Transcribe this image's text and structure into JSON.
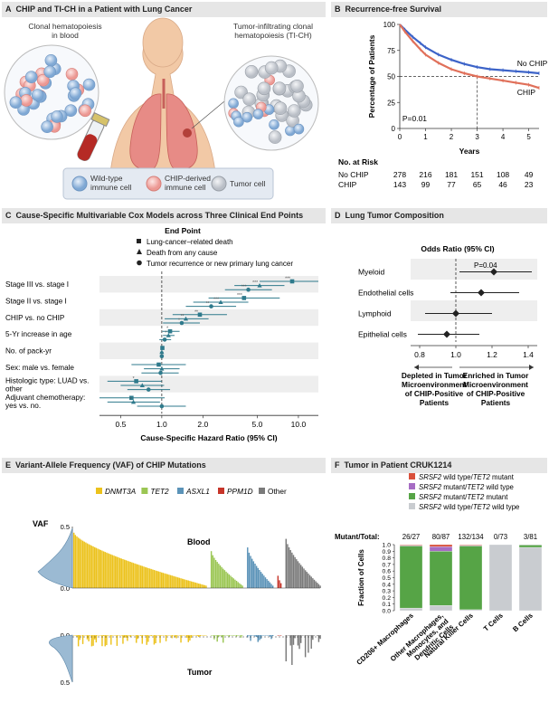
{
  "colors": {
    "header_bg": "#e6e6e6",
    "blood_blue": "#8ab0d8",
    "chip_pink": "#f0a8a4",
    "tumor_gray": "#c8ccd2",
    "no_chip_line": "#3c63c8",
    "chip_line": "#e0705a",
    "forest_marker": "#2f7a8c",
    "band": "#eeeeee",
    "dnmt3a": "#ecc21c",
    "tet2": "#9bc653",
    "asxl1": "#5b93b8",
    "ppm1d": "#c7352a",
    "other": "#7a7a7a",
    "state_tet2_mut": "#d9503b",
    "state_srsf2_mut": "#a66cc4",
    "state_both": "#56a446",
    "state_wt": "#c9ccd0",
    "lung": "#e78b86",
    "skin": "#f2c9a6"
  },
  "panel_a": {
    "letter": "A",
    "title": "CHIP and TI-CH in a Patient with Lung Cancer",
    "label_left": [
      "Clonal hematopoiesis",
      "in blood"
    ],
    "label_right": [
      "Tumor-infiltrating clonal",
      "hematopoiesis (TI-CH)"
    ],
    "legend": [
      {
        "icon": "wild-type-cell",
        "lines": [
          "Wild-type",
          "immune cell"
        ]
      },
      {
        "icon": "chip-cell",
        "lines": [
          "CHIP-derived",
          "immune cell"
        ]
      },
      {
        "icon": "tumor-cell",
        "lines": [
          "Tumor cell"
        ]
      }
    ]
  },
  "panel_b": {
    "letter": "B",
    "title": "Recurrence-free Survival",
    "pvalue": "P=0.01",
    "risk_title": "No. at Risk",
    "risk_rows": [
      {
        "label": "No CHIP",
        "values": [
          "278",
          "216",
          "181",
          "151",
          "108",
          "49"
        ]
      },
      {
        "label": "CHIP",
        "values": [
          "143",
          "99",
          "77",
          "65",
          "46",
          "23"
        ]
      }
    ],
    "chart_data": {
      "type": "line",
      "title": "Recurrence-free Survival",
      "xlabel": "Years",
      "ylabel": "Percentage of Patients",
      "xlim": [
        0,
        5.4
      ],
      "ylim": [
        0,
        100
      ],
      "xticks": [
        0,
        1,
        2,
        3,
        4,
        5
      ],
      "yticks": [
        0,
        25,
        50,
        75,
        100
      ],
      "reference": {
        "y": 50,
        "x": 3
      },
      "series": [
        {
          "name": "No CHIP",
          "x": [
            0,
            0.2,
            0.5,
            0.8,
            1.0,
            1.5,
            2.0,
            2.5,
            3.0,
            3.5,
            4.0,
            4.5,
            5.0,
            5.4
          ],
          "y": [
            100,
            95,
            88,
            82,
            78,
            71,
            66,
            62,
            59,
            57,
            56,
            55,
            54,
            53
          ]
        },
        {
          "name": "CHIP",
          "x": [
            0,
            0.2,
            0.5,
            0.8,
            1.0,
            1.5,
            2.0,
            2.5,
            3.0,
            3.5,
            4.0,
            4.5,
            5.0,
            5.4
          ],
          "y": [
            100,
            93,
            84,
            76,
            71,
            63,
            57,
            53,
            50,
            48,
            46,
            44,
            42,
            39
          ]
        }
      ]
    }
  },
  "panel_c": {
    "letter": "C",
    "title": "Cause-Specific Multivariable Cox Models across Three Clinical End Points",
    "legend_title": "End Point",
    "legend": [
      {
        "shape": "square",
        "label": "Lung-cancer–related death"
      },
      {
        "shape": "triangle",
        "label": "Death from any cause"
      },
      {
        "shape": "circle",
        "label": "Tumor recurrence or new primary lung cancer"
      }
    ],
    "rows": [
      {
        "label": [
          "Stage III vs. stage I"
        ]
      },
      {
        "label": [
          "Stage II vs. stage I"
        ]
      },
      {
        "label": [
          "CHIP vs. no CHIP"
        ]
      },
      {
        "label": [
          "5-Yr increase in age"
        ]
      },
      {
        "label": [
          "No. of pack-yr"
        ]
      },
      {
        "label": [
          "Sex: male vs. female"
        ]
      },
      {
        "label": [
          "Histologic type: LUAD vs.",
          "other"
        ]
      },
      {
        "label": [
          "Adjuvant chemotherapy:",
          "yes vs. no."
        ]
      }
    ],
    "chart_data": {
      "type": "forest",
      "xlabel": "Cause-Specific Hazard Ratio (95% CI)",
      "xscale": "log",
      "xlim": [
        0.35,
        14
      ],
      "xticks": [
        0.5,
        1.0,
        2.0,
        5.0,
        10.0
      ],
      "xtick_labels": [
        "0.5",
        "1.0",
        "2.0",
        "5.0",
        "10.0"
      ],
      "reference": 1.0,
      "series_names": [
        "Lung-cancer–related death",
        "Death from any cause",
        "Tumor recurrence or new primary lung cancer"
      ],
      "points": [
        {
          "row": 0,
          "est": [
            9.0,
            5.2,
            4.3
          ],
          "lo": [
            5.2,
            3.4,
            2.9
          ],
          "hi": [
            14.0,
            7.9,
            6.4
          ],
          "sig": [
            "***",
            "***",
            "***"
          ]
        },
        {
          "row": 1,
          "est": [
            4.0,
            2.7,
            2.3
          ],
          "lo": [
            2.2,
            1.7,
            1.5
          ],
          "hi": [
            7.3,
            4.3,
            3.5
          ],
          "sig": [
            "***",
            "***",
            "**"
          ]
        },
        {
          "row": 2,
          "est": [
            1.9,
            1.5,
            1.4
          ],
          "lo": [
            1.2,
            1.05,
            1.02
          ],
          "hi": [
            3.0,
            2.2,
            1.9
          ],
          "sig": [
            "**",
            "**",
            "*"
          ]
        },
        {
          "row": 3,
          "est": [
            1.15,
            1.12,
            1.05
          ],
          "lo": [
            1.01,
            1.02,
            0.96
          ],
          "hi": [
            1.35,
            1.24,
            1.17
          ],
          "sig": [
            "*",
            "*",
            ""
          ]
        },
        {
          "row": 4,
          "est": [
            1.01,
            1.0,
            1.0
          ],
          "lo": [
            0.98,
            0.97,
            0.97
          ],
          "hi": [
            1.04,
            1.03,
            1.03
          ],
          "sig": [
            "",
            "",
            ""
          ]
        },
        {
          "row": 5,
          "est": [
            0.95,
            1.0,
            0.98
          ],
          "lo": [
            0.6,
            0.74,
            0.71
          ],
          "hi": [
            1.5,
            1.35,
            1.33
          ],
          "sig": [
            "",
            "",
            ""
          ]
        },
        {
          "row": 6,
          "est": [
            0.65,
            0.72,
            0.8
          ],
          "lo": [
            0.4,
            0.5,
            0.56
          ],
          "hi": [
            1.0,
            1.04,
            1.15
          ],
          "sig": [
            "*",
            "",
            ""
          ]
        },
        {
          "row": 7,
          "est": [
            0.6,
            0.62,
            1.0
          ],
          "lo": [
            0.35,
            0.4,
            0.66
          ],
          "hi": [
            1.05,
            0.97,
            1.5
          ],
          "sig": [
            "",
            "*",
            ""
          ]
        }
      ]
    }
  },
  "panel_d": {
    "letter": "D",
    "title": "Lung Tumor Composition",
    "subtitle": "Odds Ratio (95% CI)",
    "pvalue": "P=0.04",
    "left_caption": [
      "Depleted in Tumor",
      "Microenvironment",
      "of CHIP-Positive",
      "Patients"
    ],
    "right_caption": [
      "Enriched in Tumor",
      "Microenvironment",
      "of CHIP-Positive",
      "Patients"
    ],
    "chart_data": {
      "type": "forest",
      "xlabel": "Odds Ratio (95% CI)",
      "xlim": [
        0.75,
        1.45
      ],
      "xticks": [
        0.8,
        1.0,
        1.2,
        1.4
      ],
      "xtick_labels": [
        "0.8",
        "1.0",
        "1.2",
        "1.4"
      ],
      "reference": 1.0,
      "categories": [
        "Myeloid",
        "Endothelial cells",
        "Lymphoid",
        "Epithelial cells"
      ],
      "est": [
        1.21,
        1.14,
        1.0,
        0.95
      ],
      "lo": [
        1.02,
        0.97,
        0.83,
        0.79
      ],
      "hi": [
        1.42,
        1.35,
        1.2,
        1.13
      ]
    }
  },
  "panel_e": {
    "letter": "E",
    "title": "Variant-Allele Frequency (VAF) of CHIP Mutations",
    "legend": [
      {
        "key": "dnmt3a",
        "label": "DNMT3A",
        "italic": true
      },
      {
        "key": "tet2",
        "label": "TET2",
        "italic": true
      },
      {
        "key": "asxl1",
        "label": "ASXL1",
        "italic": true
      },
      {
        "key": "ppm1d",
        "label": "PPM1D",
        "italic": true
      },
      {
        "key": "other",
        "label": "Other",
        "italic": false
      }
    ],
    "vaf_label": "VAF",
    "blood_label": "Blood",
    "tumor_label": "Tumor",
    "chart_data": {
      "type": "bar",
      "ylabel": "VAF",
      "ylim_blood": [
        0,
        0.5
      ],
      "ylim_tumor": [
        0,
        0.5
      ],
      "yticks_blood": [
        "0.5",
        "0.0"
      ],
      "yticks_tumor": [
        "0.0",
        "0.5"
      ],
      "groups": [
        {
          "gene": "DNMT3A",
          "count": 90,
          "blood_max": 0.45,
          "blood_min": 0.02,
          "tumor_max": 0.16
        },
        {
          "gene": "TET2",
          "count": 22,
          "blood_max": 0.3,
          "blood_min": 0.02,
          "tumor_max": 0.12
        },
        {
          "gene": "ASXL1",
          "count": 18,
          "blood_max": 0.33,
          "blood_min": 0.02,
          "tumor_max": 0.1
        },
        {
          "gene": "PPM1D",
          "count": 3,
          "blood_max": 0.1,
          "blood_min": 0.04,
          "tumor_max": 0.05
        },
        {
          "gene": "Other",
          "count": 24,
          "blood_max": 0.4,
          "blood_min": 0.02,
          "tumor_max": 0.38
        }
      ]
    }
  },
  "panel_f": {
    "letter": "F",
    "title": "Tumor in Patient CRUK1214",
    "legend": [
      {
        "key": "state_tet2_mut",
        "pre": "SRSF2",
        "mid": " wild type/",
        "gene2": "TET2",
        "post": " mutant"
      },
      {
        "key": "state_srsf2_mut",
        "pre": "SRSF2",
        "mid": " mutant/",
        "gene2": "TET2",
        "post": " wild type"
      },
      {
        "key": "state_both",
        "pre": "SRSF2",
        "mid": " mutant/",
        "gene2": "TET2",
        "post": " mutant"
      },
      {
        "key": "state_wt",
        "pre": "SRSF2",
        "mid": " wild type/",
        "gene2": "TET2",
        "post": " wild type"
      }
    ],
    "mutant_total_label": "Mutant/Total:",
    "chart_data": {
      "type": "bar",
      "stacked": true,
      "ylabel": "Fraction of Cells",
      "ylim": [
        0,
        1
      ],
      "yticks": [
        "0.0",
        "0.1",
        "0.2",
        "0.3",
        "0.4",
        "0.5",
        "0.6",
        "0.7",
        "0.8",
        "0.9",
        "1.0"
      ],
      "categories": [
        "CD206+ Macrophages",
        "Other Macrophages, Monocytes, and Dendritic Cells",
        "Natural Killer Cells",
        "T Cells",
        "B Cells"
      ],
      "tick_lines": [
        [
          "CD206+ Macrophages"
        ],
        [
          "Other Macrophages,",
          "Monocytes, and",
          "Dendritic Cells"
        ],
        [
          "Natural Killer Cells"
        ],
        [
          "T Cells"
        ],
        [
          "B Cells"
        ]
      ],
      "mutant_total": [
        "26/27",
        "80/87",
        "132/134",
        "0/73",
        "3/81"
      ],
      "stack_order": [
        "state_wt",
        "state_both",
        "state_srsf2_mut",
        "state_tet2_mut"
      ],
      "series": [
        {
          "name": "SRSF2 wild type/TET2 wild type",
          "key": "state_wt",
          "values": [
            0.04,
            0.08,
            0.015,
            1.0,
            0.96
          ]
        },
        {
          "name": "SRSF2 mutant/TET2 mutant",
          "key": "state_both",
          "values": [
            0.94,
            0.82,
            0.965,
            0.0,
            0.035
          ]
        },
        {
          "name": "SRSF2 mutant/TET2 wild type",
          "key": "state_srsf2_mut",
          "values": [
            0.01,
            0.07,
            0.01,
            0.0,
            0.005
          ]
        },
        {
          "name": "SRSF2 wild type/TET2 mutant",
          "key": "state_tet2_mut",
          "values": [
            0.01,
            0.03,
            0.01,
            0.0,
            0.0
          ]
        }
      ]
    }
  }
}
